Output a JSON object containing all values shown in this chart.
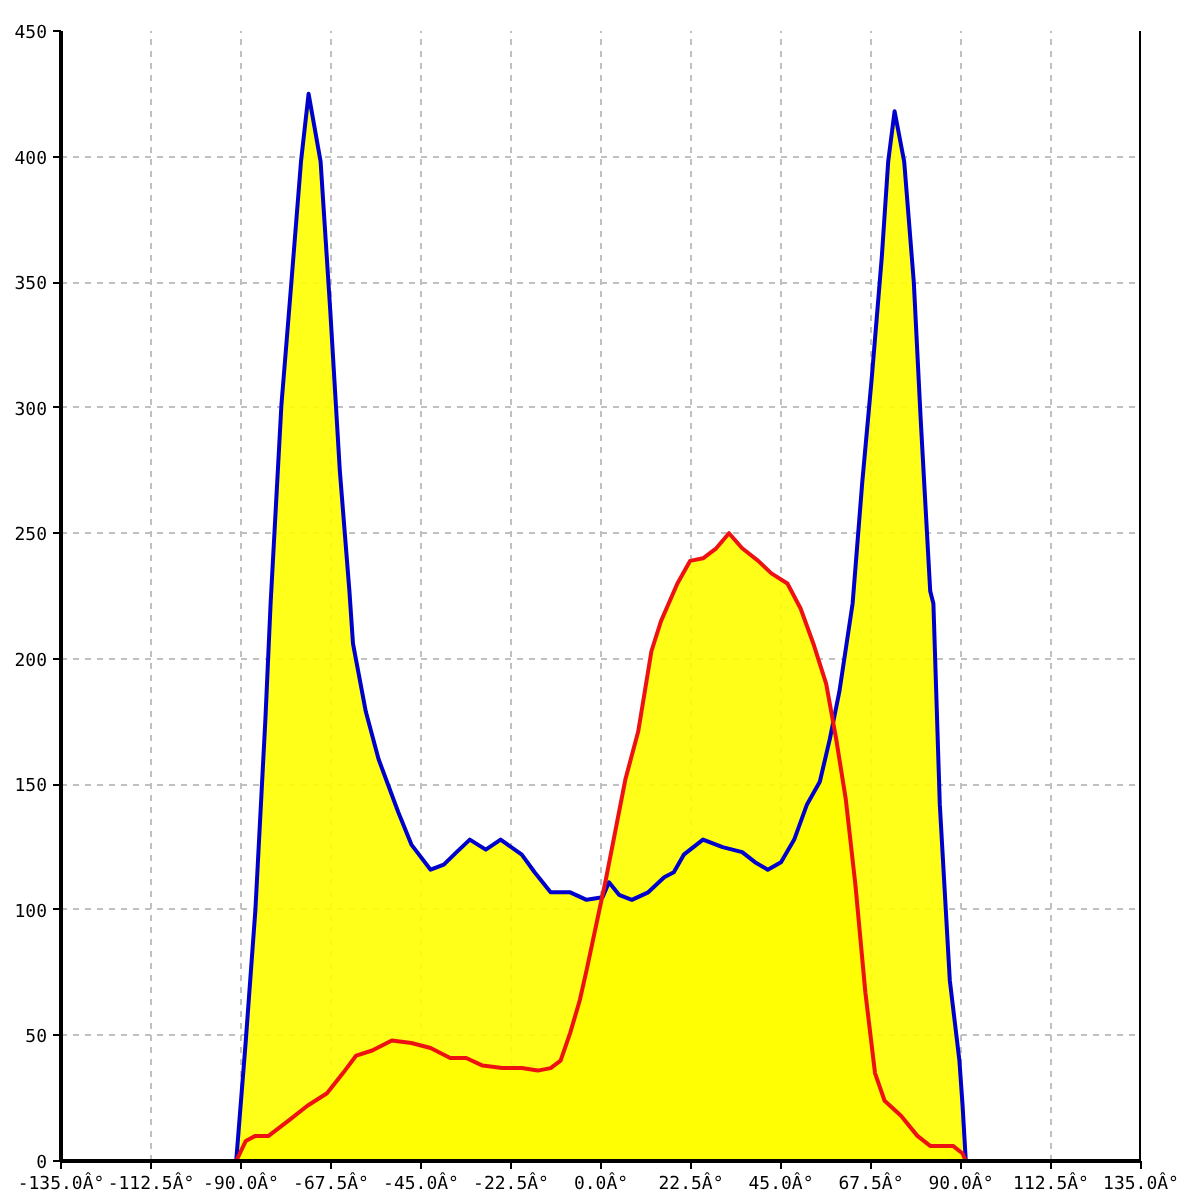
{
  "chart_data": {
    "type": "area",
    "xlim": [
      -135,
      135
    ],
    "ylim": [
      0,
      450
    ],
    "xticks": [
      {
        "value": -135,
        "label": "-135.0Â°"
      },
      {
        "value": -112.5,
        "label": "-112.5Â°"
      },
      {
        "value": -90,
        "label": "-90.0Â°"
      },
      {
        "value": -67.5,
        "label": "-67.5Â°"
      },
      {
        "value": -45,
        "label": "-45.0Â°"
      },
      {
        "value": -22.5,
        "label": "-22.5Â°"
      },
      {
        "value": 0,
        "label": "0.0Â°"
      },
      {
        "value": 22.5,
        "label": "22.5Â°"
      },
      {
        "value": 45,
        "label": "45.0Â°"
      },
      {
        "value": 67.5,
        "label": "67.5Â°"
      },
      {
        "value": 90,
        "label": "90.0Â°"
      },
      {
        "value": 112.5,
        "label": "112.5Â°"
      },
      {
        "value": 135,
        "label": "135.0Â°"
      }
    ],
    "yticks": [
      0,
      50,
      100,
      150,
      200,
      250,
      300,
      350,
      400,
      450
    ],
    "grid": true,
    "colors": [
      "#0000cc",
      "#ee1111"
    ],
    "series": [
      {
        "color": "#ffff00",
        "x": [
          -91.2,
          -88.8,
          -86.4,
          -83.9,
          -82.6,
          -79.9,
          -77.4,
          -75.0,
          -73.1,
          -70.1,
          -67.7,
          -65.3,
          -62.9,
          -62.0,
          -58.8,
          -55.6,
          -50.7,
          -47.4,
          -42.6,
          -39.3,
          -36.1,
          -32.8,
          -28.8,
          -25.1,
          -19.8,
          -16.6,
          -12.6,
          -7.7,
          -3.6,
          0.4,
          2.0,
          4.5,
          7.7,
          11.8,
          15.8,
          18.2,
          20.7,
          25.5,
          30.4,
          35.3,
          38.5,
          41.7,
          45.0,
          48.3,
          51.5,
          54.7,
          57.2,
          59.6,
          62.9,
          65.3,
          67.7,
          70.2,
          71.8,
          73.4,
          75.8,
          78.2,
          79.9,
          82.3,
          83.1,
          84.7,
          87.2,
          89.6,
          90.4,
          91.2
        ],
        "values": [
          0,
          48,
          100,
          176,
          222,
          301,
          350,
          398,
          425,
          398,
          339,
          275,
          227,
          206,
          179,
          160,
          139,
          126,
          116,
          118,
          123,
          128,
          124,
          128,
          122,
          115,
          107,
          107,
          104,
          105,
          111,
          106,
          104,
          107,
          113,
          115,
          122,
          128,
          125,
          123,
          119,
          116,
          119,
          128,
          142,
          151,
          168,
          187,
          222,
          270,
          312,
          360,
          398,
          418,
          398,
          350,
          296,
          227,
          222,
          142,
          72,
          40,
          22,
          0
        ]
      },
      {
        "color": "#fffe00",
        "x": [
          -135,
          -91.2,
          -88.8,
          -86.4,
          -83.1,
          -78.2,
          -73.4,
          -68.5,
          -64.5,
          -61.2,
          -57.2,
          -52.3,
          -47.4,
          -42.6,
          -37.7,
          -33.7,
          -29.6,
          -24.7,
          -19.8,
          -15.8,
          -12.6,
          -10.1,
          -7.7,
          -5.3,
          -3.6,
          1.2,
          6.1,
          9.3,
          12.6,
          15.0,
          19.1,
          22.3,
          25.5,
          28.8,
          32.0,
          35.3,
          39.3,
          42.6,
          46.6,
          49.9,
          53.1,
          56.3,
          58.8,
          61.2,
          63.6,
          66.1,
          68.5,
          70.9,
          75.0,
          79.1,
          82.3,
          88.0,
          90.4,
          91.2,
          135
        ],
        "values": [
          0,
          0,
          8,
          10,
          10,
          16,
          22,
          27,
          35,
          42,
          44,
          48,
          47,
          45,
          41,
          41,
          38,
          37,
          37,
          36,
          37,
          40,
          51,
          64,
          76,
          112,
          152,
          171,
          203,
          215,
          230,
          239,
          240,
          244,
          250,
          244,
          239,
          234,
          230,
          220,
          206,
          190,
          168,
          144,
          110,
          67,
          35,
          24,
          18,
          10,
          6,
          6,
          3,
          0,
          0
        ]
      }
    ]
  }
}
